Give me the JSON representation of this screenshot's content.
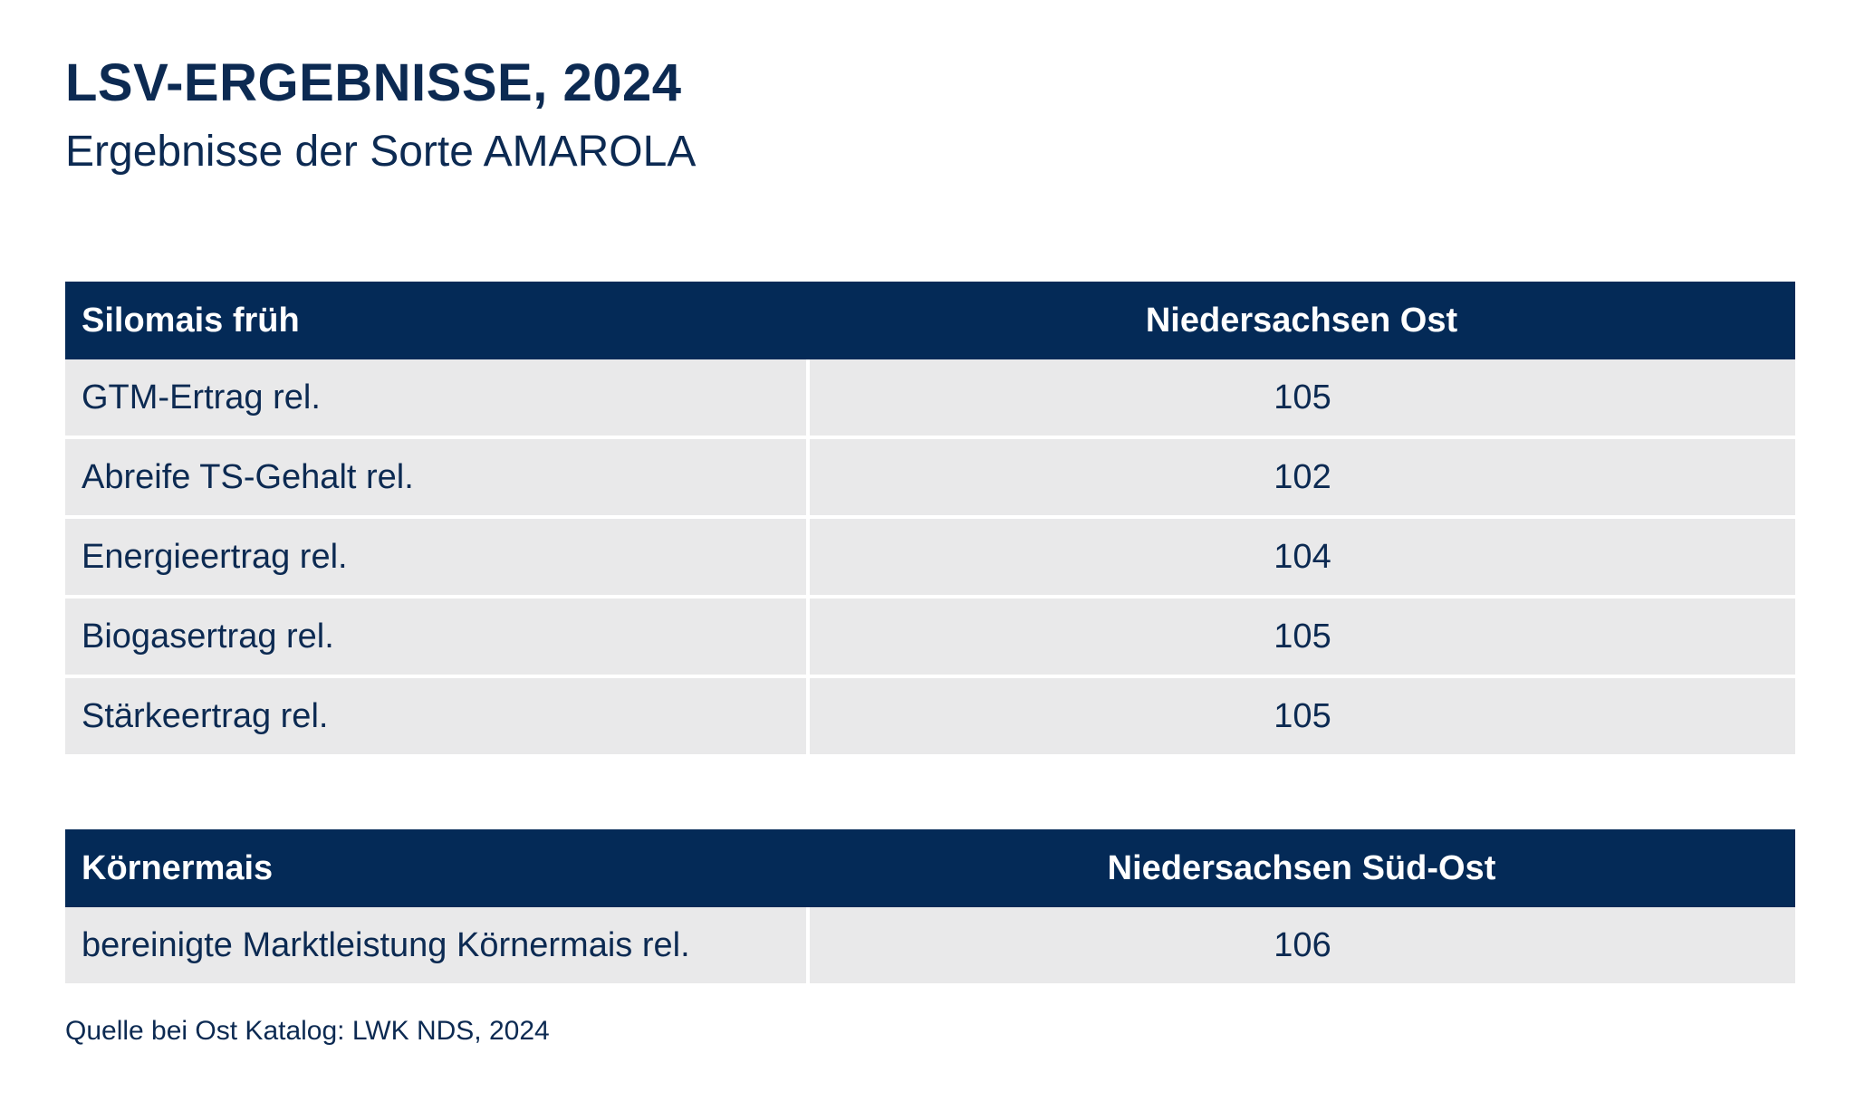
{
  "header": {
    "title": "LSV-ERGEBNISSE, 2024",
    "subtitle": "Ergebnisse der Sorte AMAROLA"
  },
  "table_silomais": {
    "col1_header": "Silomais früh",
    "col2_header": "Niedersachsen Ost",
    "rows": [
      {
        "label": "GTM-Ertrag rel.",
        "value": "105"
      },
      {
        "label": "Abreife TS-Gehalt rel.",
        "value": "102"
      },
      {
        "label": "Energieertrag rel.",
        "value": "104"
      },
      {
        "label": "Biogasertrag rel.",
        "value": "105"
      },
      {
        "label": "Stärkeertrag rel.",
        "value": "105"
      }
    ]
  },
  "table_koernermais": {
    "col1_header": "Körnermais",
    "col2_header": "Niedersachsen Süd-Ost",
    "rows": [
      {
        "label": "bereinigte Marktleistung Körnermais rel.",
        "value": "106"
      }
    ]
  },
  "footer": {
    "source": "Quelle bei Ost Katalog: LWK NDS, 2024"
  },
  "colors": {
    "header_bg": "#042a57",
    "row_bg": "#e9e9ea",
    "text": "#0c2a52"
  }
}
